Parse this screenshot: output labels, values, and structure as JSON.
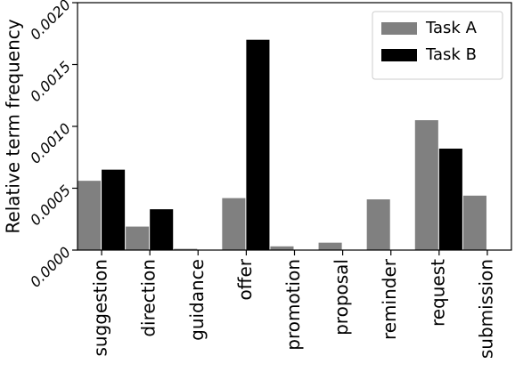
{
  "chart_data": {
    "type": "bar",
    "ylabel": "Relative term frequency",
    "xlabel": "",
    "ylim": [
      0,
      0.002
    ],
    "yticks": [
      "0.0000",
      "0.0005",
      "0.0010",
      "0.0015",
      "0.0020"
    ],
    "categories": [
      "suggestion",
      "direction",
      "guidance",
      "offer",
      "promotion",
      "proposal",
      "reminder",
      "request",
      "submission"
    ],
    "series": [
      {
        "name": "Task A",
        "color": "#808080",
        "values": [
          0.00056,
          0.00019,
          1e-05,
          0.00042,
          3e-05,
          6e-05,
          0.00041,
          0.00105,
          0.00044
        ]
      },
      {
        "name": "Task B",
        "color": "#000000",
        "values": [
          0.00065,
          0.00033,
          0.0,
          0.0017,
          0.0,
          0.0,
          0.0,
          0.00082,
          0.0
        ]
      }
    ],
    "legend_position": "top-right",
    "grid": false
  }
}
